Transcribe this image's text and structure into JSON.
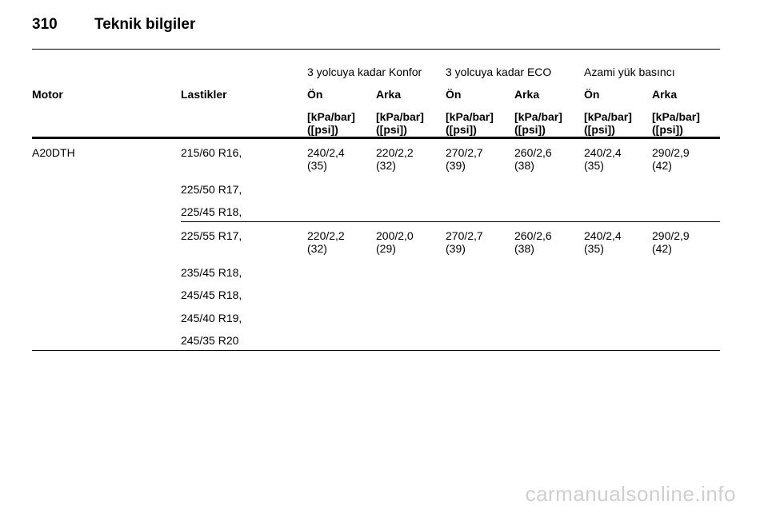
{
  "header": {
    "page_number": "310",
    "section_title": "Teknik bilgiler"
  },
  "table": {
    "group_headers": [
      "3 yolcuya kadar Konfor",
      "3 yolcuya kadar ECO",
      "Azami yük basıncı"
    ],
    "col_motor": "Motor",
    "col_tires": "Lastikler",
    "subheaders": [
      "Ön",
      "Arka",
      "Ön",
      "Arka",
      "Ön",
      "Arka"
    ],
    "unit_line1": "[kPa/bar]",
    "unit_line2": "([psi])",
    "engine": "A20DTH",
    "group1": {
      "tires": [
        "215/60 R16,",
        "225/50 R17,",
        "225/45 R18,"
      ],
      "values": [
        [
          "240/2,4",
          "(35)"
        ],
        [
          "220/2,2",
          "(32)"
        ],
        [
          "270/2,7",
          "(39)"
        ],
        [
          "260/2,6",
          "(38)"
        ],
        [
          "240/2,4",
          "(35)"
        ],
        [
          "290/2,9",
          "(42)"
        ]
      ]
    },
    "group2": {
      "tires": [
        "225/55 R17,",
        "235/45 R18,",
        "245/45 R18,",
        "245/40 R19,",
        "245/35 R20"
      ],
      "values": [
        [
          "220/2,2",
          "(32)"
        ],
        [
          "200/2,0",
          "(29)"
        ],
        [
          "270/2,7",
          "(39)"
        ],
        [
          "260/2,6",
          "(38)"
        ],
        [
          "240/2,4",
          "(35)"
        ],
        [
          "290/2,9",
          "(42)"
        ]
      ]
    }
  },
  "watermark": "carmanualsonline.info"
}
